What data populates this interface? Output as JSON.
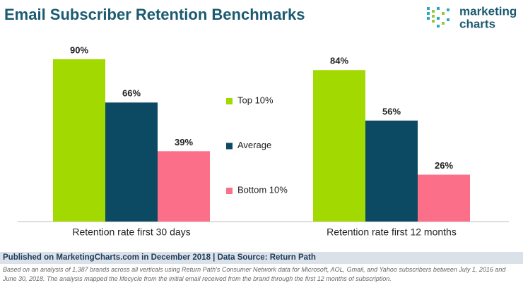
{
  "chart_data": {
    "type": "bar",
    "title": "Email Subscriber Retention Benchmarks",
    "categories": [
      "Retention rate first 30 days",
      "Retention rate first 12 months"
    ],
    "series": [
      {
        "name": "Top 10%",
        "color": "#a2d900",
        "values": [
          90,
          84
        ],
        "value_labels": [
          "90%",
          "84%"
        ]
      },
      {
        "name": "Average",
        "color": "#0c4a64",
        "values": [
          66,
          56
        ],
        "value_labels": [
          "66%",
          "56%"
        ]
      },
      {
        "name": "Bottom 10%",
        "color": "#fb6f88",
        "values": [
          39,
          26
        ],
        "value_labels": [
          "39%",
          "26%"
        ]
      }
    ]
  },
  "logo": {
    "line1": "marketing",
    "line2": "charts"
  },
  "footer": {
    "source": "Published on MarketingCharts.com in December 2018 | Data Source: Return Path",
    "note": "Based on an analysis of 1,387 brands across all verticals using Return Path's Consumer Network data for Microsoft, AOL, Gmail, and Yahoo subscribers between July 1, 2016 and June 30, 2018. The analysis mapped the lifecycle from the initial email received from the brand through the first 12 months of subscription."
  }
}
